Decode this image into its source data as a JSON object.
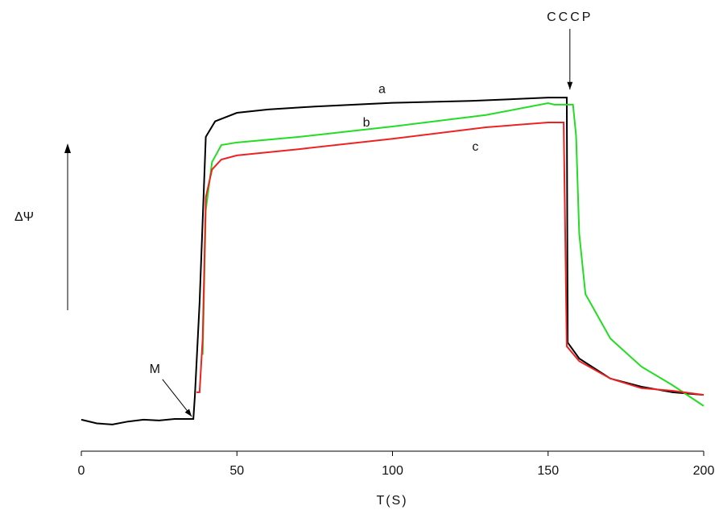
{
  "chart_data": {
    "type": "line",
    "x_label": "T(S)",
    "y_label": "ΔΨ",
    "xlim": [
      0,
      200
    ],
    "xticks": [
      0,
      50,
      100,
      150,
      200
    ],
    "ylim": [
      0,
      100
    ],
    "series": [
      {
        "name": "a",
        "color": "#000000",
        "x": [
          0,
          5,
          10,
          15,
          20,
          25,
          30,
          36,
          36.5,
          38,
          40,
          43,
          50,
          60,
          75,
          100,
          125,
          150,
          156,
          156.3,
          160,
          170,
          180,
          190,
          200
        ],
        "values": [
          8.5,
          7.5,
          7.2,
          8,
          8.5,
          8.3,
          8.7,
          8.7,
          15,
          40,
          84.8,
          89,
          91.3,
          92.2,
          93,
          94,
          94.5,
          95.4,
          95.4,
          29.3,
          25,
          19.6,
          17.4,
          15.9,
          15.2
        ]
      },
      {
        "name": "b",
        "color": "#22dd22",
        "x": [
          39,
          40,
          42,
          45,
          50,
          70,
          100,
          130,
          150,
          152,
          158,
          159,
          160,
          162,
          170,
          180,
          190,
          200
        ],
        "values": [
          26,
          65,
          78,
          82.6,
          83.3,
          84.8,
          87.6,
          90.7,
          93.9,
          93.5,
          93.5,
          85,
          58.7,
          42.4,
          30.4,
          22.8,
          17.8,
          12.2
        ]
      },
      {
        "name": "c",
        "color": "#ee2222",
        "x": [
          37,
          38,
          39,
          40,
          42,
          45,
          50,
          70,
          100,
          130,
          150,
          155,
          156,
          160,
          170,
          180,
          190,
          200
        ],
        "values": [
          15.9,
          15.9,
          30.4,
          68.5,
          76,
          78.7,
          79.8,
          81.5,
          84.3,
          87.4,
          88.7,
          88.7,
          28.3,
          24.3,
          19.6,
          17,
          16.3,
          15.2
        ]
      }
    ],
    "annotations": [
      {
        "text": "a",
        "x": 97,
        "y": 97.5
      },
      {
        "text": "b",
        "x": 92,
        "y": 88.5
      },
      {
        "text": "c",
        "x": 127,
        "y": 82
      },
      {
        "text": "M",
        "x": 24,
        "y": 22
      },
      {
        "text": "CCCP",
        "x": 157,
        "y": 117
      }
    ]
  }
}
